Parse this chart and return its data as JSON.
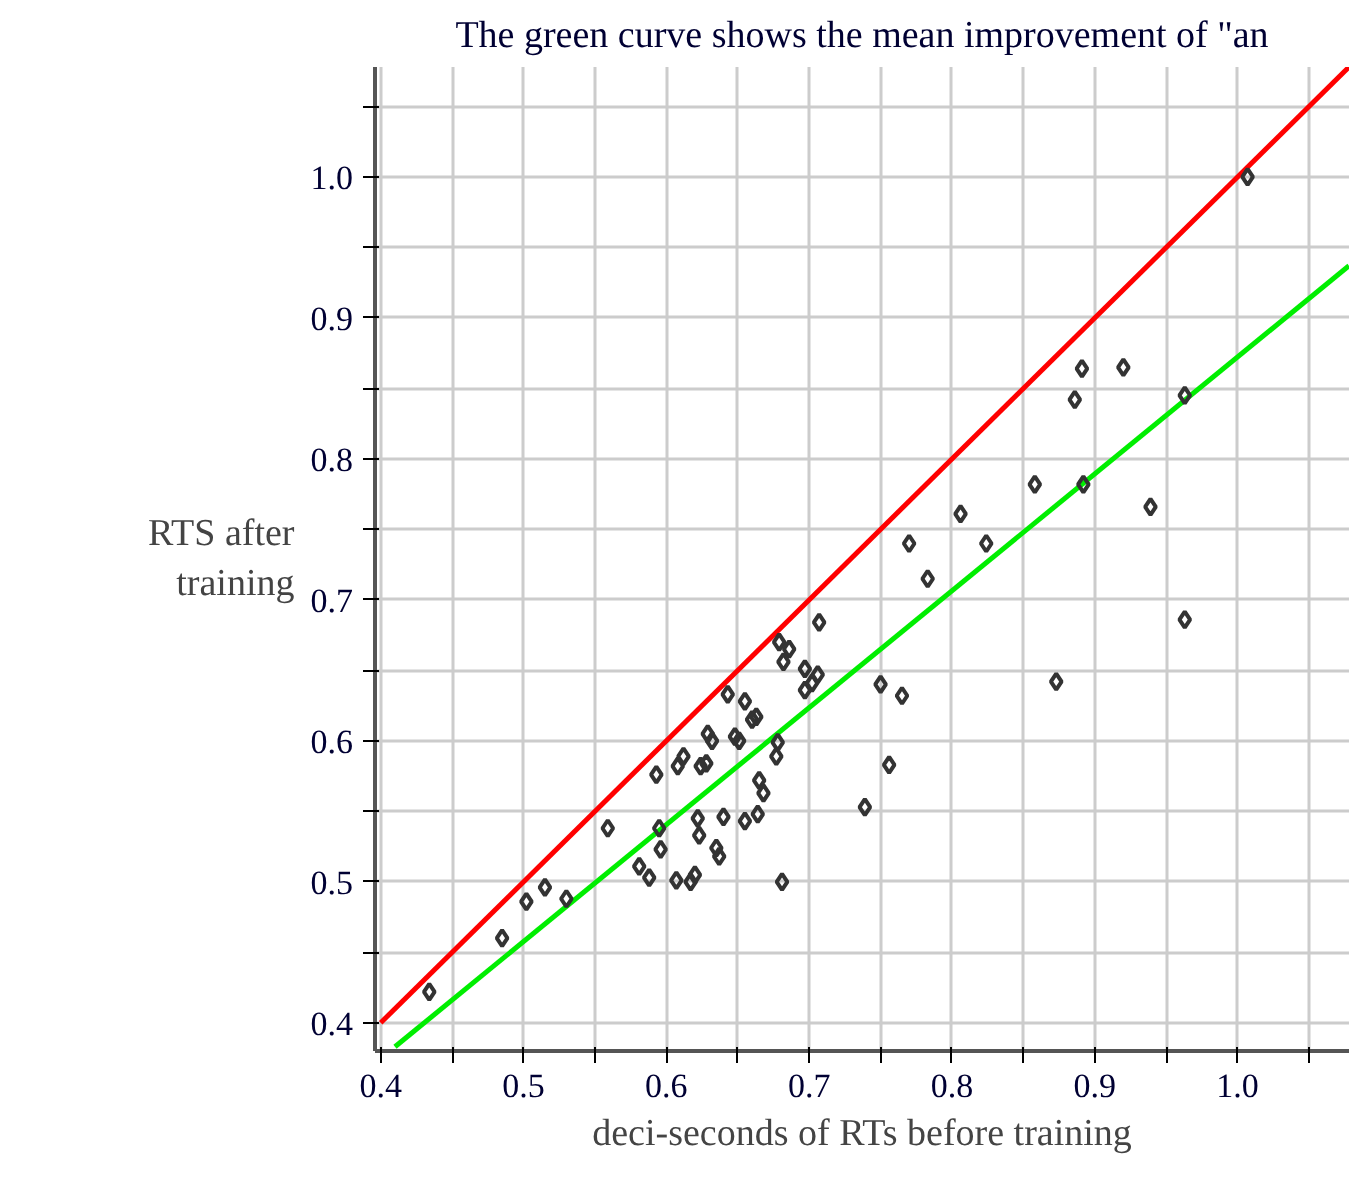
{
  "chart_data": {
    "type": "scatter",
    "title": "The green curve shows the mean improvement of \"an",
    "xlabel": "deci-seconds of RTs before training",
    "ylabel": "RTS after\ntraining",
    "xlim": [
      0.396,
      1.078
    ],
    "ylim": [
      0.38,
      1.078
    ],
    "xticks": [
      0.4,
      {
        "value": 0.45,
        "label": null
      },
      0.5,
      {
        "value": 0.55,
        "label": null
      },
      0.6,
      {
        "value": 0.65,
        "label": null
      },
      0.7,
      {
        "value": 0.75,
        "label": null
      },
      0.8,
      {
        "value": 0.85,
        "label": null
      },
      0.9,
      {
        "value": 0.95,
        "label": null
      },
      {
        "value": 1.0,
        "label": "1.0"
      },
      {
        "value": 1.05,
        "label": null
      }
    ],
    "yticks": [
      0.4,
      {
        "value": 0.45,
        "label": null
      },
      0.5,
      {
        "value": 0.55,
        "label": null
      },
      0.6,
      {
        "value": 0.65,
        "label": null
      },
      0.7,
      {
        "value": 0.75,
        "label": null
      },
      0.8,
      {
        "value": 0.85,
        "label": null
      },
      0.9,
      {
        "value": 0.95,
        "label": null
      },
      {
        "value": 1.0,
        "label": "1.0"
      },
      {
        "value": 1.05,
        "label": null
      }
    ],
    "grid": true,
    "series": [
      {
        "type": "line",
        "marker": "none",
        "color": "#ff0000",
        "x": [
          0.4,
          1.078
        ],
        "values": [
          0.4,
          1.078
        ]
      },
      {
        "type": "line",
        "marker": "none",
        "color": "#00ee00",
        "x": [
          0.41,
          1.078
        ],
        "values": [
          0.383,
          0.937
        ]
      },
      {
        "marker": "diamond",
        "color": "#333333",
        "x": [
          0.434,
          0.485,
          0.502,
          0.515,
          0.53,
          0.559,
          0.581,
          0.588,
          0.593,
          0.595,
          0.596,
          0.607,
          0.608,
          0.612,
          0.617,
          0.62,
          0.622,
          0.623,
          0.624,
          0.628,
          0.635,
          0.637,
          0.629,
          0.632,
          0.64,
          0.643,
          0.648,
          0.651,
          0.655,
          0.655,
          0.66,
          0.663,
          0.664,
          0.665,
          0.668,
          0.677,
          0.678,
          0.681,
          0.679,
          0.686,
          0.682,
          0.697,
          0.697,
          0.702,
          0.706,
          0.707,
          0.739,
          0.756,
          0.75,
          0.765,
          0.783,
          0.77,
          0.824,
          0.806,
          0.873,
          0.858,
          0.892,
          0.939,
          0.963,
          0.886,
          0.891,
          0.92,
          0.963,
          1.007
        ],
        "values": [
          0.422,
          0.46,
          0.486,
          0.496,
          0.488,
          0.538,
          0.511,
          0.503,
          0.576,
          0.538,
          0.523,
          0.501,
          0.582,
          0.589,
          0.5,
          0.505,
          0.545,
          0.533,
          0.582,
          0.584,
          0.524,
          0.518,
          0.605,
          0.6,
          0.546,
          0.633,
          0.603,
          0.6,
          0.628,
          0.543,
          0.615,
          0.617,
          0.548,
          0.572,
          0.563,
          0.589,
          0.599,
          0.5,
          0.67,
          0.665,
          0.656,
          0.651,
          0.636,
          0.641,
          0.647,
          0.684,
          0.553,
          0.583,
          0.64,
          0.632,
          0.715,
          0.74,
          0.74,
          0.761,
          0.642,
          0.782,
          0.782,
          0.766,
          0.686,
          0.842,
          0.864,
          0.865,
          0.845,
          1.0
        ]
      }
    ]
  }
}
